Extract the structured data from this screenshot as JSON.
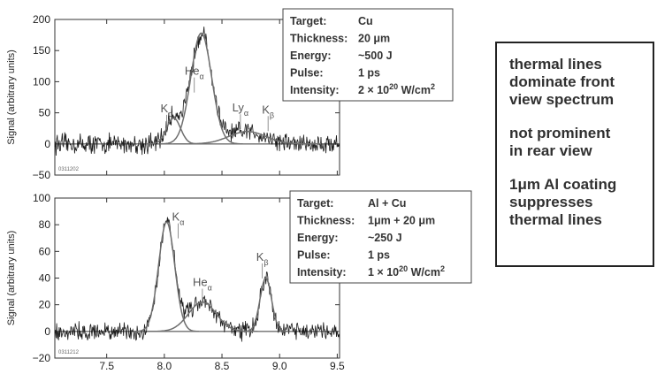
{
  "colors": {
    "noise": "#1a1a1a",
    "fit": "#6e6e6e",
    "frame": "#333333",
    "box_border": "#444444"
  },
  "shared_xlabel_ticks": [
    "7.5",
    "8.0",
    "8.5",
    "9.0",
    "9.5"
  ],
  "chart_data": [
    {
      "type": "line",
      "ylabel": "Signal (arbitrary units)",
      "xlim": [
        7.05,
        9.52
      ],
      "ylim": [
        -50,
        200
      ],
      "y_ticks": [
        -50,
        0,
        50,
        100,
        150,
        200
      ],
      "x_ticks": [
        7.5,
        8.0,
        8.5,
        9.0,
        9.5
      ],
      "corner_label": "0311202",
      "grid": false,
      "info_box": {
        "rows": [
          {
            "key": "Target:",
            "value": "Cu"
          },
          {
            "key": "Thickness:",
            "value": "20 μm"
          },
          {
            "key": "Energy:",
            "value": "~500 J"
          },
          {
            "key": "Pulse:",
            "value": "1 ps"
          },
          {
            "key": "Intensity:",
            "value": "2 × 10",
            "sup": "20",
            "unit": " W/cm",
            "unit_sup": "2"
          }
        ]
      },
      "peak_labels": [
        {
          "main": "He",
          "sub": "α",
          "x": 8.26,
          "y": 111
        },
        {
          "main": "K",
          "sub": "α",
          "x": 8.02,
          "y": 51
        },
        {
          "main": "Ly",
          "sub": "α",
          "x": 8.66,
          "y": 52
        },
        {
          "main": "K",
          "sub": "β",
          "x": 8.9,
          "y": 49
        }
      ],
      "fit_components": [
        {
          "center": 8.32,
          "amplitude": 178,
          "width": 0.09
        },
        {
          "center": 8.08,
          "amplitude": 42,
          "width": 0.06
        },
        {
          "center": 8.72,
          "amplitude": 20,
          "width": 0.16
        }
      ],
      "noise_amplitude": 12
    },
    {
      "type": "line",
      "ylabel": "Signal (arbitrary units)",
      "xlim": [
        7.05,
        9.52
      ],
      "ylim": [
        -20,
        100
      ],
      "y_ticks": [
        -20,
        0,
        20,
        40,
        60,
        80,
        100
      ],
      "x_ticks": [
        7.5,
        8.0,
        8.5,
        9.0,
        9.5
      ],
      "corner_label": "0311212",
      "grid": false,
      "info_box": {
        "rows": [
          {
            "key": "Target:",
            "value": "Al + Cu"
          },
          {
            "key": "Thickness:",
            "value": "1μm + 20 μm"
          },
          {
            "key": "Energy:",
            "value": "~250 J"
          },
          {
            "key": "Pulse:",
            "value": "1 ps"
          },
          {
            "key": "Intensity:",
            "value": "1 × 10",
            "sup": "20",
            "unit": " W/cm",
            "unit_sup": "2"
          }
        ]
      },
      "peak_labels": [
        {
          "main": "K",
          "sub": "α",
          "x": 8.12,
          "y": 83
        },
        {
          "main": "He",
          "sub": "α",
          "x": 8.33,
          "y": 34
        },
        {
          "main": "K",
          "sub": "β",
          "x": 8.85,
          "y": 53
        }
      ],
      "fit_components": [
        {
          "center": 8.02,
          "amplitude": 82,
          "width": 0.07
        },
        {
          "center": 8.33,
          "amplitude": 22,
          "width": 0.12
        },
        {
          "center": 8.88,
          "amplitude": 40,
          "width": 0.05
        }
      ],
      "noise_amplitude": 5
    }
  ],
  "notes": [
    "thermal lines\ndominate front\nview spectrum",
    "not prominent\nin rear view",
    "1μm Al coating\nsuppresses\nthermal lines"
  ]
}
